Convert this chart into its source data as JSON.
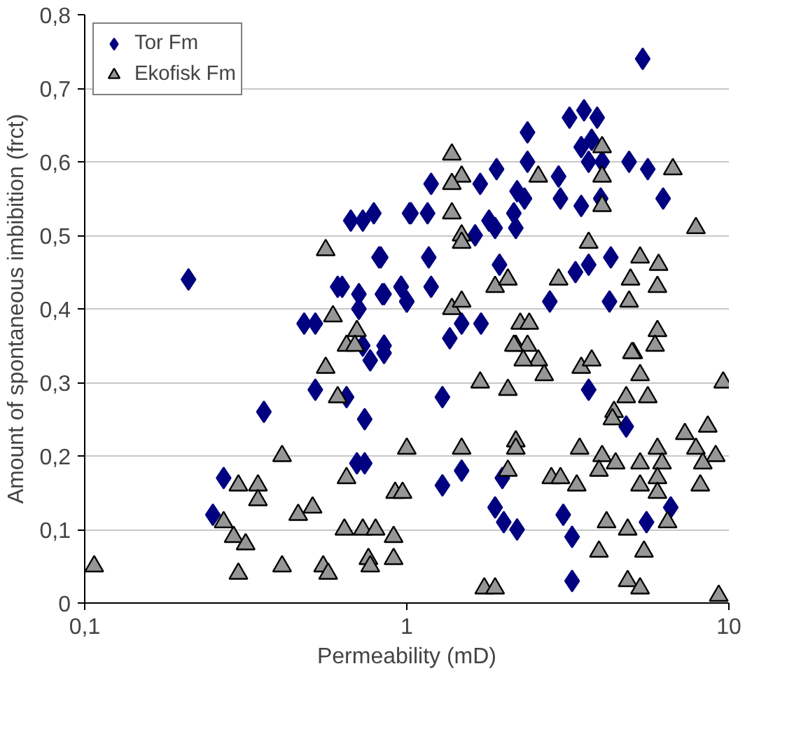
{
  "chart_data": {
    "type": "scatter",
    "xlabel": "Permeability (mD)",
    "ylabel": "Amount of spontaneous imbibition (frct)",
    "log": "x",
    "xlim": [
      0.1,
      10
    ],
    "xticks": [
      {
        "value": 0.1,
        "label": "0,1"
      },
      1,
      10
    ],
    "ylim": [
      0,
      0.8
    ],
    "yticks": [
      0,
      {
        "value": 0.1,
        "label": "0,1"
      },
      {
        "value": 0.2,
        "label": "0,2"
      },
      {
        "value": 0.3,
        "label": "0,3"
      },
      {
        "value": 0.4,
        "label": "0,4"
      },
      {
        "value": 0.5,
        "label": "0,5"
      },
      {
        "value": 0.6,
        "label": "0,6"
      },
      {
        "value": 0.7,
        "label": "0,7"
      },
      {
        "value": 0.8,
        "label": "0,8"
      }
    ],
    "grid": "y",
    "legend": "top left",
    "series": [
      {
        "name": "Tor Fm",
        "color": "#000080",
        "marker": "diamond",
        "x": [
          0.21,
          0.67,
          0.73,
          0.79,
          1.02,
          0.82,
          0.63,
          0.61,
          0.71,
          0.84,
          0.96,
          1.0,
          0.71,
          0.48,
          0.52,
          0.73,
          0.85,
          0.77,
          0.52,
          0.65,
          0.36,
          0.74,
          0.7,
          0.74,
          0.27,
          0.25,
          3.2,
          3.55,
          3.9,
          2.37,
          3.48,
          3.75,
          3.67,
          4.04,
          4.9,
          5.6,
          6.25,
          2.37,
          1.9,
          1.69,
          1.19,
          2.96,
          3.0,
          3.48,
          4.0,
          1.16,
          1.03,
          2.2,
          2.32,
          2.15,
          1.8,
          1.88,
          1.63,
          2.18,
          0.83,
          1.17,
          4.3,
          3.67,
          3.34,
          1.94,
          0.96,
          0.85,
          1.0,
          1.19,
          2.78,
          4.26,
          1.48,
          1.36,
          1.7,
          0.85,
          5.4,
          1.29,
          3.67,
          4.8,
          1.48,
          1.29,
          1.98,
          1.88,
          2.0,
          2.2,
          3.06,
          3.26,
          3.26,
          5.55,
          6.6
        ],
        "values": [
          0.44,
          0.52,
          0.52,
          0.53,
          0.53,
          0.47,
          0.43,
          0.43,
          0.42,
          0.42,
          0.43,
          0.41,
          0.4,
          0.38,
          0.38,
          0.35,
          0.35,
          0.33,
          0.29,
          0.28,
          0.26,
          0.25,
          0.19,
          0.19,
          0.17,
          0.12,
          0.66,
          0.67,
          0.66,
          0.64,
          0.62,
          0.63,
          0.6,
          0.6,
          0.6,
          0.59,
          0.55,
          0.6,
          0.59,
          0.57,
          0.57,
          0.58,
          0.55,
          0.54,
          0.55,
          0.53,
          0.53,
          0.56,
          0.55,
          0.53,
          0.52,
          0.51,
          0.5,
          0.51,
          0.47,
          0.47,
          0.47,
          0.46,
          0.45,
          0.46,
          0.43,
          0.42,
          0.41,
          0.43,
          0.41,
          0.41,
          0.38,
          0.36,
          0.38,
          0.34,
          0.74,
          0.28,
          0.29,
          0.24,
          0.18,
          0.16,
          0.17,
          0.13,
          0.11,
          0.1,
          0.12,
          0.09,
          0.03,
          0.11,
          0.13
        ]
      },
      {
        "name": "Ekofisk Fm",
        "color": "#969696",
        "marker": "triangle",
        "x": [
          0.56,
          0.59,
          0.7,
          0.65,
          0.69,
          0.56,
          0.61,
          1.0,
          0.41,
          0.3,
          0.345,
          0.345,
          0.65,
          0.92,
          0.97,
          0.51,
          0.46,
          0.27,
          0.29,
          0.316,
          0.64,
          0.73,
          0.8,
          0.91,
          0.107,
          0.3,
          0.41,
          0.55,
          0.57,
          0.76,
          0.77,
          0.91,
          1.38,
          1.48,
          1.38,
          1.38,
          1.48,
          1.48,
          2.56,
          4.04,
          4.04,
          4.04,
          6.7,
          7.9,
          3.67,
          5.3,
          6.05,
          6.0,
          4.95,
          4.9,
          2.96,
          1.88,
          2.06,
          1.38,
          1.48,
          2.25,
          2.4,
          6.0,
          5.9,
          2.18,
          2.37,
          5.05,
          2.15,
          2.56,
          2.3,
          2.67,
          1.69,
          2.06,
          3.48,
          3.75,
          5.0,
          5.3,
          9.6,
          4.8,
          5.6,
          4.4,
          4.35,
          1.48,
          2.18,
          2.18,
          2.06,
          3.44,
          4.04,
          4.45,
          3.95,
          5.3,
          6.0,
          6.2,
          6.0,
          5.3,
          6.0,
          7.3,
          7.9,
          8.6,
          9.1,
          8.3,
          8.15,
          2.81,
          3.0,
          3.37,
          4.17,
          4.85,
          5.45,
          6.45,
          3.95,
          4.85,
          5.3,
          1.74,
          1.88,
          9.3
        ],
        "values": [
          0.48,
          0.39,
          0.37,
          0.35,
          0.35,
          0.32,
          0.28,
          0.21,
          0.2,
          0.16,
          0.16,
          0.14,
          0.17,
          0.15,
          0.15,
          0.13,
          0.12,
          0.11,
          0.09,
          0.08,
          0.1,
          0.1,
          0.1,
          0.09,
          0.05,
          0.04,
          0.05,
          0.05,
          0.04,
          0.06,
          0.05,
          0.06,
          0.61,
          0.58,
          0.57,
          0.53,
          0.5,
          0.49,
          0.58,
          0.62,
          0.58,
          0.54,
          0.59,
          0.51,
          0.49,
          0.47,
          0.46,
          0.43,
          0.44,
          0.41,
          0.44,
          0.43,
          0.44,
          0.4,
          0.41,
          0.38,
          0.38,
          0.37,
          0.35,
          0.35,
          0.35,
          0.34,
          0.35,
          0.33,
          0.33,
          0.31,
          0.3,
          0.29,
          0.32,
          0.33,
          0.34,
          0.31,
          0.3,
          0.28,
          0.28,
          0.26,
          0.25,
          0.21,
          0.22,
          0.21,
          0.18,
          0.21,
          0.2,
          0.19,
          0.18,
          0.19,
          0.21,
          0.19,
          0.17,
          0.16,
          0.15,
          0.23,
          0.21,
          0.24,
          0.2,
          0.19,
          0.16,
          0.17,
          0.17,
          0.16,
          0.11,
          0.1,
          0.07,
          0.11,
          0.07,
          0.03,
          0.02,
          0.02,
          0.02,
          0.01
        ]
      }
    ]
  }
}
